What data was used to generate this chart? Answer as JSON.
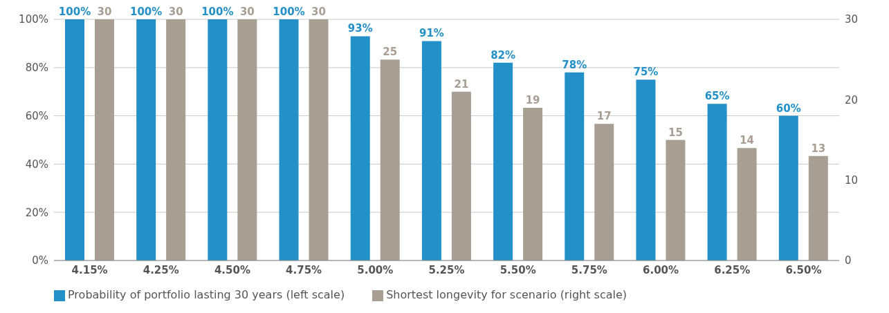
{
  "chart_data": {
    "type": "bar",
    "categories": [
      "4.15%",
      "4.25%",
      "4.50%",
      "4.75%",
      "5.00%",
      "5.25%",
      "5.50%",
      "5.75%",
      "6.00%",
      "6.25%",
      "6.50%"
    ],
    "series": [
      {
        "name": "Probability of portfolio lasting 30 years (left scale)",
        "color": "#2390c8",
        "values": [
          100,
          100,
          100,
          100,
          93,
          91,
          82,
          78,
          75,
          65,
          60
        ],
        "value_labels": [
          "100%",
          "100%",
          "100%",
          "100%",
          "93%",
          "91%",
          "82%",
          "78%",
          "75%",
          "65%",
          "60%"
        ]
      },
      {
        "name": "Shortest longevity for scenario (right scale)",
        "color": "#a89e92",
        "axis": "y2",
        "values": [
          30,
          30,
          30,
          30,
          25,
          21,
          19,
          17,
          15,
          14,
          13
        ],
        "value_labels": [
          "30",
          "30",
          "30",
          "30",
          "25",
          "21",
          "19",
          "17",
          "15",
          "14",
          "13"
        ]
      }
    ],
    "ylim": [
      0,
      100
    ],
    "yticks": [
      {
        "value": 0,
        "label": "0%"
      },
      {
        "value": 20,
        "label": "20%"
      },
      {
        "value": 40,
        "label": "40%"
      },
      {
        "value": 60,
        "label": "60%"
      },
      {
        "value": 80,
        "label": "80%"
      },
      {
        "value": 100,
        "label": "100%"
      }
    ],
    "y2lim": [
      0,
      30
    ],
    "y2ticks": [
      0,
      10,
      20,
      30
    ],
    "grid": "y",
    "legend": "bottom left"
  }
}
